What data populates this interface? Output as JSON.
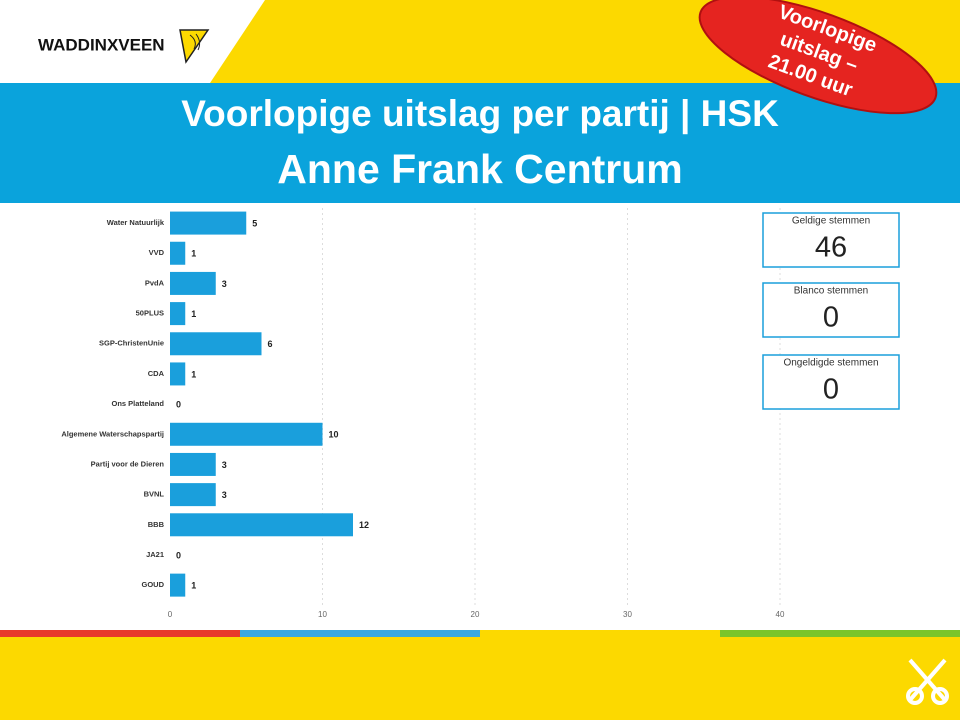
{
  "logo": "WADDINXVEEN",
  "badge": [
    "Voorlopige",
    "uitslag –",
    "21.00 uur"
  ],
  "header": {
    "title": [
      "Voorlopige uitslag per partij | HSK",
      "Anne Frank Centrum"
    ]
  },
  "chart_data": {
    "type": "bar",
    "orientation": "horizontal",
    "categories": [
      "Water Natuurlijk",
      "VVD",
      "PvdA",
      "50PLUS",
      "SGP-ChristenUnie",
      "CDA",
      "Ons Platteland",
      "Algemene Waterschapspartij",
      "Partij voor de Dieren",
      "BVNL",
      "BBB",
      "JA21",
      "GOUD"
    ],
    "values": [
      5,
      1,
      3,
      1,
      6,
      1,
      0,
      10,
      3,
      3,
      12,
      0,
      1
    ],
    "color": "#1a9fdc",
    "xlim": [
      0,
      40
    ],
    "xticks": [
      0,
      10,
      20,
      30,
      40
    ],
    "grid": true
  },
  "cards": [
    {
      "label": "Geldige stemmen",
      "value": "46"
    },
    {
      "label": "Blanco stemmen",
      "value": "0"
    },
    {
      "label": "Ongeldigde stemmen",
      "value": "0"
    }
  ]
}
